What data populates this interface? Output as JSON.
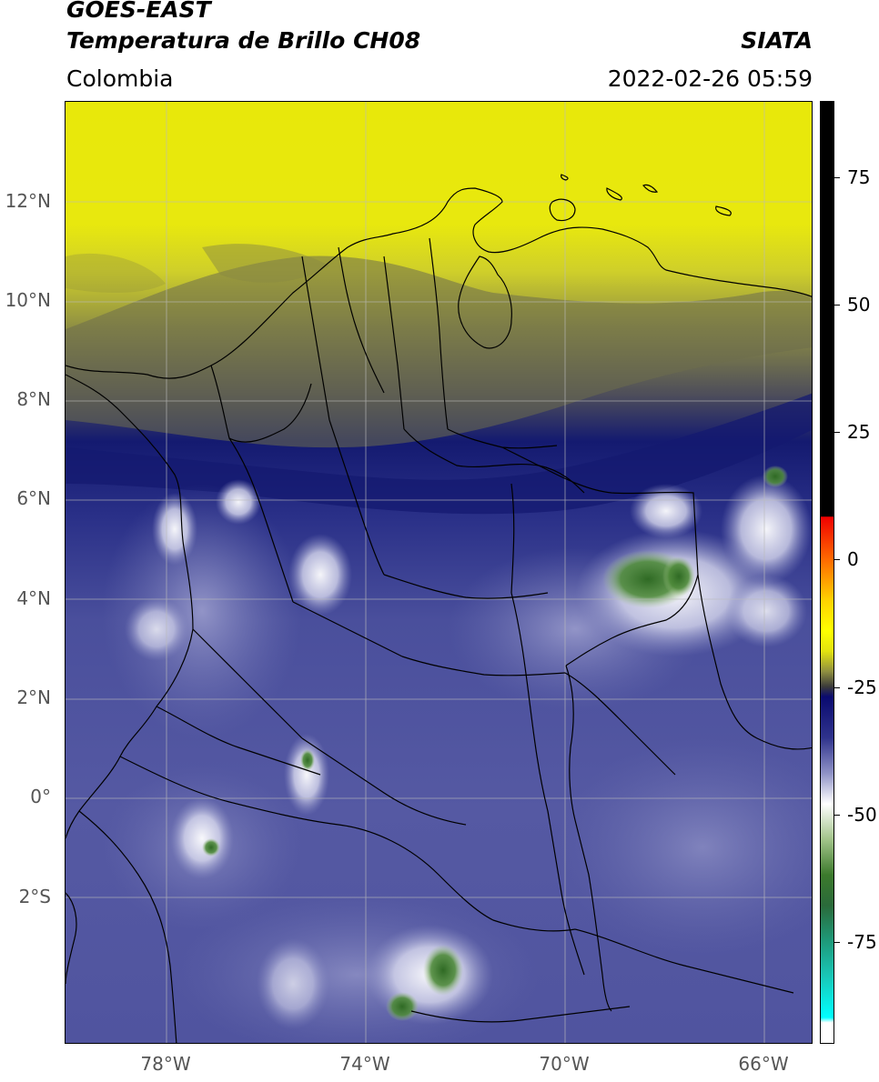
{
  "header": {
    "title_line1": "GOES-EAST",
    "title_line2": "Temperatura de Brillo CH08",
    "brand": "SIATA",
    "region": "Colombia",
    "timestamp": "2022-02-26 05:59"
  },
  "map": {
    "lat_labels": [
      "12°N",
      "10°N",
      "8°N",
      "6°N",
      "4°N",
      "2°N",
      "0°",
      "2°S"
    ],
    "lon_labels": [
      "78°W",
      "74°W",
      "70°W",
      "66°W"
    ],
    "colors": {
      "yellow": "#e9e90e",
      "olive": "#8a8a3a",
      "dark_navy": "#141a70",
      "navy": "#3a3f92",
      "blue": "#5559a3",
      "lavender": "#9a9ccc",
      "white": "#ffffff",
      "green": "#3d7a2e",
      "gridline": "#bbbbbb"
    }
  },
  "colorbar": {
    "tick_labels": [
      "75",
      "50",
      "25",
      "0",
      "-25",
      "-50",
      "-75"
    ],
    "tick_values": [
      75,
      50,
      25,
      0,
      -25,
      -50,
      -75
    ],
    "range": [
      -95,
      90
    ],
    "stops": [
      {
        "value": 90,
        "color": "#000000"
      },
      {
        "value": 8.5,
        "color": "#000000"
      },
      {
        "value": 8.4,
        "color": "#f00000"
      },
      {
        "value": 0,
        "color": "#ff6a00"
      },
      {
        "value": -8,
        "color": "#ffd200"
      },
      {
        "value": -14,
        "color": "#ffff00"
      },
      {
        "value": -18,
        "color": "#e3e30f"
      },
      {
        "value": -22,
        "color": "#8f8f40"
      },
      {
        "value": -25,
        "color": "#3a3a3a"
      },
      {
        "value": -27,
        "color": "#0a0a70"
      },
      {
        "value": -35,
        "color": "#2f338c"
      },
      {
        "value": -42,
        "color": "#8f92c6"
      },
      {
        "value": -48,
        "color": "#ffffff"
      },
      {
        "value": -55,
        "color": "#a2c48a"
      },
      {
        "value": -62,
        "color": "#3c7a2c"
      },
      {
        "value": -68,
        "color": "#2a6a3a"
      },
      {
        "value": -75,
        "color": "#1e9a7a"
      },
      {
        "value": -82,
        "color": "#19c8b8"
      },
      {
        "value": -90,
        "color": "#00ffff"
      },
      {
        "value": -91,
        "color": "#ffffff"
      },
      {
        "value": -95,
        "color": "#ffffff"
      }
    ]
  }
}
